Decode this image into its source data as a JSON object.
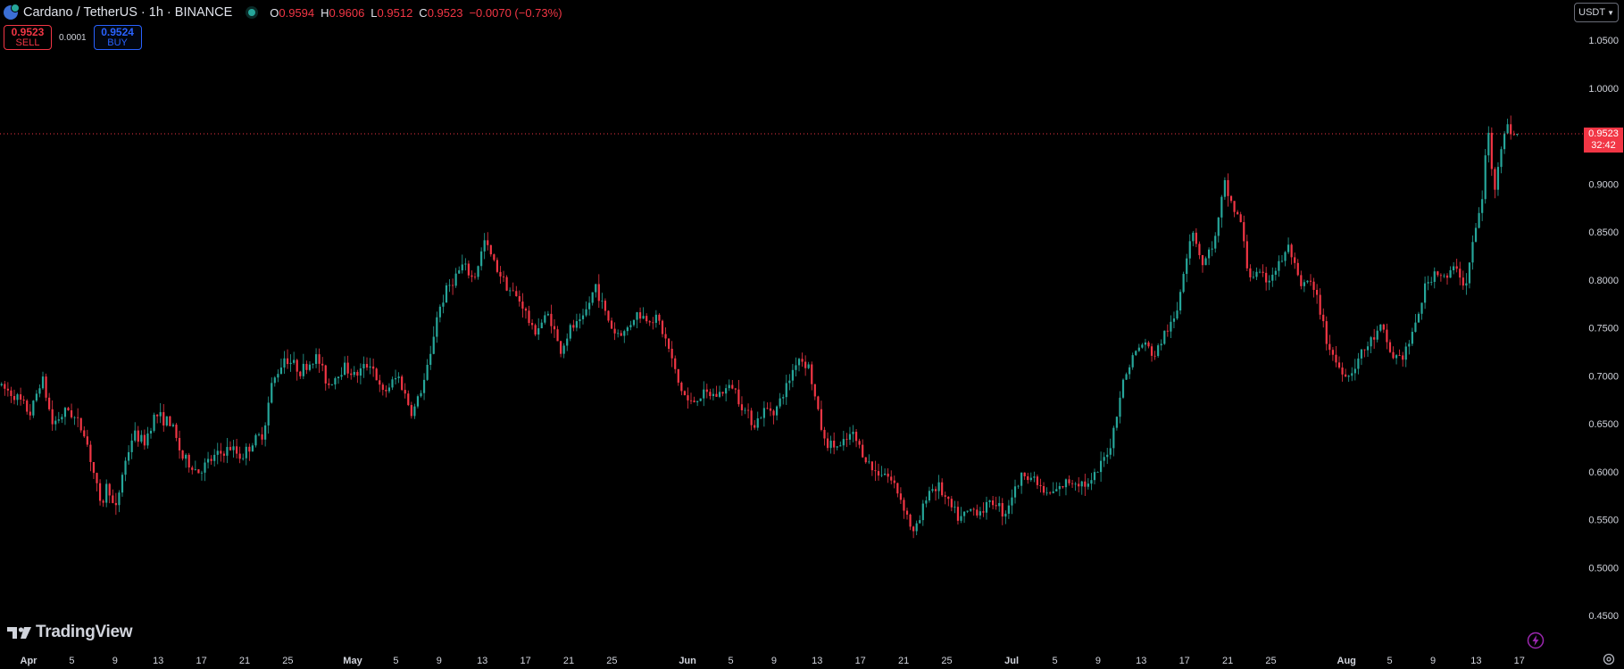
{
  "header": {
    "title": "Cardano / TetherUS · 1h · BINANCE",
    "ohlc": [
      {
        "key": "O",
        "value": "0.9594"
      },
      {
        "key": "H",
        "value": "0.9606"
      },
      {
        "key": "L",
        "value": "0.9512"
      },
      {
        "key": "C",
        "value": "0.9523"
      }
    ],
    "change": "−0.0070 (−0.73%)"
  },
  "trade": {
    "sell_price": "0.9523",
    "sell_label": "SELL",
    "spread": "0.0001",
    "buy_price": "0.9524",
    "buy_label": "BUY"
  },
  "currency": {
    "label": "USDT"
  },
  "last_price": {
    "price": "0.9523",
    "countdown": "32:42"
  },
  "logo": {
    "text": "TradingView"
  },
  "colors": {
    "up": "#26a69a",
    "down": "#f23645",
    "background": "#000000",
    "text": "#d1d4dc",
    "accent": "#2962ff"
  },
  "icons": {
    "symbol": "ada-coin-icon",
    "bolt": "lightning-icon",
    "settings": "gear-icon"
  },
  "chart_data": {
    "type": "candlestick",
    "timeframe": "1h",
    "ylim": [
      0.43,
      1.07
    ],
    "y_ticks": [
      "1.0500",
      "1.0000",
      "0.9500",
      "0.9000",
      "0.8500",
      "0.8000",
      "0.7500",
      "0.7000",
      "0.6500",
      "0.6000",
      "0.5500",
      "0.5000",
      "0.4500"
    ],
    "x_ticks": [
      {
        "label": "Apr",
        "day": 0,
        "bold": true
      },
      {
        "label": "5",
        "day": 4
      },
      {
        "label": "9",
        "day": 8
      },
      {
        "label": "13",
        "day": 12
      },
      {
        "label": "17",
        "day": 16
      },
      {
        "label": "21",
        "day": 20
      },
      {
        "label": "25",
        "day": 24
      },
      {
        "label": "May",
        "day": 30,
        "bold": true
      },
      {
        "label": "5",
        "day": 34
      },
      {
        "label": "9",
        "day": 38
      },
      {
        "label": "13",
        "day": 42
      },
      {
        "label": "17",
        "day": 46
      },
      {
        "label": "21",
        "day": 50
      },
      {
        "label": "25",
        "day": 54
      },
      {
        "label": "Jun",
        "day": 61,
        "bold": true
      },
      {
        "label": "5",
        "day": 65
      },
      {
        "label": "9",
        "day": 69
      },
      {
        "label": "13",
        "day": 73
      },
      {
        "label": "17",
        "day": 77
      },
      {
        "label": "21",
        "day": 81
      },
      {
        "label": "25",
        "day": 85
      },
      {
        "label": "Jul",
        "day": 91,
        "bold": true
      },
      {
        "label": "5",
        "day": 95
      },
      {
        "label": "9",
        "day": 99
      },
      {
        "label": "13",
        "day": 103
      },
      {
        "label": "17",
        "day": 107
      },
      {
        "label": "21",
        "day": 111
      },
      {
        "label": "25",
        "day": 115
      },
      {
        "label": "Aug",
        "day": 122,
        "bold": true
      },
      {
        "label": "5",
        "day": 126
      },
      {
        "label": "9",
        "day": 130
      },
      {
        "label": "13",
        "day": 134
      },
      {
        "label": "17",
        "day": 138
      }
    ],
    "last_price_line": 0.9523,
    "price_path": [
      [
        -2.5,
        0.69
      ],
      [
        -1,
        0.68
      ],
      [
        0.5,
        0.66
      ],
      [
        1.5,
        0.7
      ],
      [
        2.5,
        0.65
      ],
      [
        4,
        0.665
      ],
      [
        5.5,
        0.64
      ],
      [
        6.5,
        0.59
      ],
      [
        7,
        0.56
      ],
      [
        7.6,
        0.59
      ],
      [
        8.3,
        0.555
      ],
      [
        9,
        0.6
      ],
      [
        10,
        0.64
      ],
      [
        11,
        0.63
      ],
      [
        12,
        0.66
      ],
      [
        13.5,
        0.65
      ],
      [
        14.5,
        0.615
      ],
      [
        16,
        0.6
      ],
      [
        17.5,
        0.615
      ],
      [
        19,
        0.625
      ],
      [
        20,
        0.615
      ],
      [
        21,
        0.63
      ],
      [
        22,
        0.64
      ],
      [
        22.8,
        0.69
      ],
      [
        24,
        0.72
      ],
      [
        25.5,
        0.705
      ],
      [
        27,
        0.72
      ],
      [
        28,
        0.69
      ],
      [
        29.5,
        0.71
      ],
      [
        30.5,
        0.7
      ],
      [
        32,
        0.715
      ],
      [
        33,
        0.68
      ],
      [
        34.5,
        0.7
      ],
      [
        35.8,
        0.66
      ],
      [
        36.8,
        0.69
      ],
      [
        37.5,
        0.72
      ],
      [
        38,
        0.76
      ],
      [
        39,
        0.79
      ],
      [
        40.5,
        0.815
      ],
      [
        41.5,
        0.8
      ],
      [
        42.5,
        0.84
      ],
      [
        43.5,
        0.815
      ],
      [
        44.8,
        0.79
      ],
      [
        46,
        0.775
      ],
      [
        47,
        0.745
      ],
      [
        48.5,
        0.765
      ],
      [
        49.5,
        0.725
      ],
      [
        50.5,
        0.75
      ],
      [
        51.5,
        0.755
      ],
      [
        52.8,
        0.795
      ],
      [
        53.5,
        0.77
      ],
      [
        54.5,
        0.745
      ],
      [
        55.5,
        0.745
      ],
      [
        56.5,
        0.765
      ],
      [
        57.5,
        0.76
      ],
      [
        58.5,
        0.76
      ],
      [
        59.5,
        0.73
      ],
      [
        60.5,
        0.69
      ],
      [
        61.5,
        0.67
      ],
      [
        62.5,
        0.68
      ],
      [
        64,
        0.68
      ],
      [
        65.5,
        0.69
      ],
      [
        66.5,
        0.665
      ],
      [
        67.5,
        0.65
      ],
      [
        68.5,
        0.665
      ],
      [
        69.5,
        0.665
      ],
      [
        70.5,
        0.69
      ],
      [
        71.5,
        0.72
      ],
      [
        72.5,
        0.71
      ],
      [
        73.3,
        0.665
      ],
      [
        74,
        0.63
      ],
      [
        75.5,
        0.625
      ],
      [
        76.5,
        0.64
      ],
      [
        77.5,
        0.62
      ],
      [
        78.5,
        0.6
      ],
      [
        79.5,
        0.6
      ],
      [
        80.5,
        0.585
      ],
      [
        81.3,
        0.565
      ],
      [
        82.2,
        0.535
      ],
      [
        82.8,
        0.55
      ],
      [
        83.5,
        0.58
      ],
      [
        84.5,
        0.585
      ],
      [
        85.5,
        0.565
      ],
      [
        86.5,
        0.55
      ],
      [
        87.5,
        0.56
      ],
      [
        88.5,
        0.56
      ],
      [
        89.8,
        0.57
      ],
      [
        90.6,
        0.555
      ],
      [
        91.3,
        0.575
      ],
      [
        92.5,
        0.6
      ],
      [
        93.5,
        0.59
      ],
      [
        94.5,
        0.575
      ],
      [
        95.5,
        0.58
      ],
      [
        96.5,
        0.59
      ],
      [
        97.5,
        0.59
      ],
      [
        98.5,
        0.585
      ],
      [
        99.5,
        0.605
      ],
      [
        100.5,
        0.63
      ],
      [
        101.5,
        0.69
      ],
      [
        102.5,
        0.72
      ],
      [
        103.5,
        0.735
      ],
      [
        104.5,
        0.72
      ],
      [
        105.5,
        0.745
      ],
      [
        106.5,
        0.76
      ],
      [
        107.2,
        0.81
      ],
      [
        108,
        0.855
      ],
      [
        109,
        0.815
      ],
      [
        110.2,
        0.845
      ],
      [
        111,
        0.9
      ],
      [
        111.8,
        0.875
      ],
      [
        112.5,
        0.86
      ],
      [
        113.2,
        0.805
      ],
      [
        114,
        0.805
      ],
      [
        115,
        0.8
      ],
      [
        116,
        0.815
      ],
      [
        117,
        0.835
      ],
      [
        118,
        0.79
      ],
      [
        118.8,
        0.8
      ],
      [
        119.7,
        0.775
      ],
      [
        120.5,
        0.735
      ],
      [
        121.5,
        0.71
      ],
      [
        122.5,
        0.7
      ],
      [
        123.5,
        0.72
      ],
      [
        124.5,
        0.735
      ],
      [
        125.5,
        0.75
      ],
      [
        126.5,
        0.72
      ],
      [
        127.5,
        0.72
      ],
      [
        128.5,
        0.745
      ],
      [
        129.5,
        0.79
      ],
      [
        130.5,
        0.81
      ],
      [
        131.5,
        0.8
      ],
      [
        132.5,
        0.815
      ],
      [
        133.3,
        0.79
      ],
      [
        134,
        0.84
      ],
      [
        134.8,
        0.88
      ],
      [
        135.4,
        0.96
      ],
      [
        135.9,
        0.89
      ],
      [
        136.6,
        0.94
      ],
      [
        137.2,
        0.96
      ],
      [
        137.8,
        0.952
      ]
    ]
  }
}
